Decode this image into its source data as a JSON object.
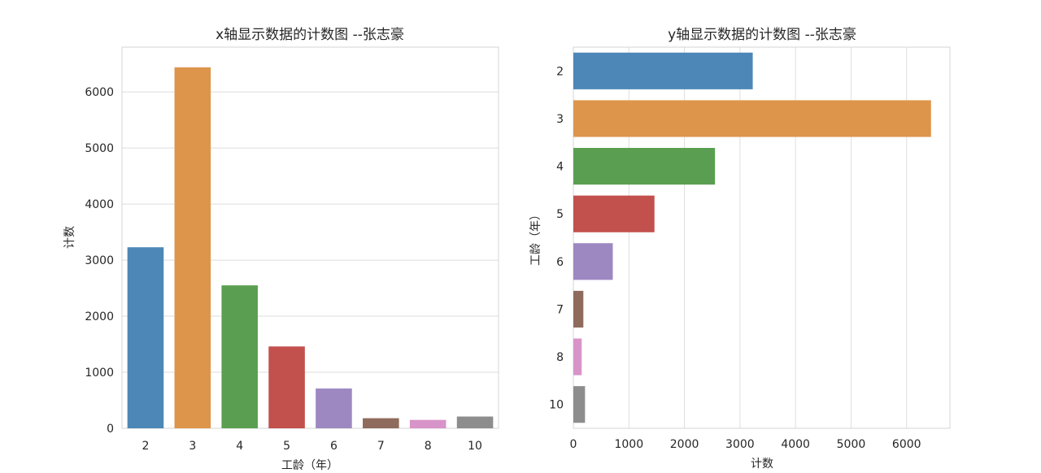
{
  "chart_data": [
    {
      "type": "bar",
      "orientation": "vertical",
      "title": "x轴显示数据的计数图 --张志豪",
      "xlabel": "工龄（年）",
      "ylabel": "计数",
      "categories": [
        "2",
        "3",
        "4",
        "5",
        "6",
        "7",
        "8",
        "10"
      ],
      "values": [
        3230,
        6440,
        2550,
        1460,
        710,
        180,
        150,
        210
      ],
      "ylim": [
        0,
        6800
      ],
      "yticks": [
        "0",
        "1000",
        "2000",
        "3000",
        "4000",
        "5000",
        "6000"
      ],
      "grid": true,
      "colors": [
        "#4c87b7",
        "#dd954b",
        "#5a9f51",
        "#c2504c",
        "#9d88c1",
        "#8f6b5d",
        "#d894c9",
        "#8d8d8d"
      ]
    },
    {
      "type": "bar",
      "orientation": "horizontal",
      "title": "y轴显示数据的计数图 --张志豪",
      "xlabel": "计数",
      "ylabel": "工龄（年）",
      "categories": [
        "2",
        "3",
        "4",
        "5",
        "6",
        "7",
        "8",
        "10"
      ],
      "values": [
        3230,
        6440,
        2550,
        1460,
        710,
        180,
        150,
        210
      ],
      "xlim": [
        0,
        6780
      ],
      "xticks": [
        "0",
        "1000",
        "2000",
        "3000",
        "4000",
        "5000",
        "6000"
      ],
      "grid": true,
      "colors": [
        "#4c87b7",
        "#dd954b",
        "#5a9f51",
        "#c2504c",
        "#9d88c1",
        "#8f6b5d",
        "#d894c9",
        "#8d8d8d"
      ]
    }
  ]
}
